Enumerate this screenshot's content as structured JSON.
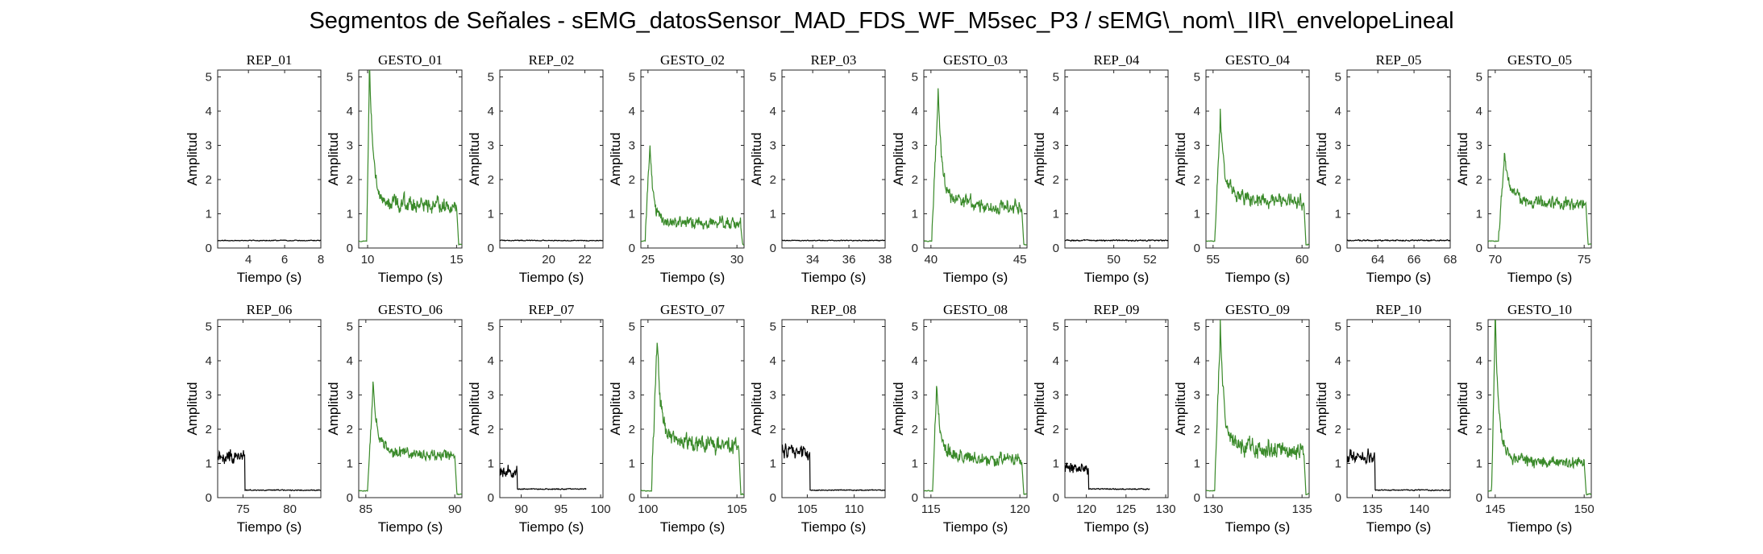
{
  "figure": {
    "title": "Segmentos de Señales - sEMG_datosSensor_MAD_FDS_WF_M5sec_P3 / sEMG\\_nom\\_IIR\\_envelopeLineal"
  },
  "colors": {
    "rep": "#000000",
    "gesto": "#3a8a2a",
    "axis": "#262626"
  },
  "chart_data": [
    {
      "type": "line",
      "title": "REP_01",
      "xlabel": "Tiempo (s)",
      "ylabel": "Amplitud",
      "xlim": [
        2.3,
        8
      ],
      "ylim": [
        0,
        5.2
      ],
      "xticks": [
        4,
        6,
        8
      ],
      "yticks": [
        0,
        1,
        2,
        3,
        4,
        5
      ],
      "series": [
        {
          "color": "rep",
          "kind": "rest",
          "start": 2.3,
          "end": 8,
          "base": 0.22,
          "noise": 0.02
        }
      ]
    },
    {
      "type": "line",
      "title": "GESTO_01",
      "xlabel": "Tiempo (s)",
      "ylabel": "Amplitud",
      "xlim": [
        9.5,
        15.3
      ],
      "ylim": [
        0,
        5.2
      ],
      "xticks": [
        10,
        15
      ],
      "yticks": [
        0,
        1,
        2,
        3,
        4,
        5
      ],
      "series": [
        {
          "color": "gesto",
          "kind": "gesture",
          "start": 9.5,
          "end": 15.3,
          "onset": 9.95,
          "peakT": 10.1,
          "peak": 5.1,
          "level": 1.2,
          "offset": 15.0,
          "noise": 0.22
        }
      ]
    },
    {
      "type": "line",
      "title": "REP_02",
      "xlabel": "Tiempo (s)",
      "ylabel": "Amplitud",
      "xlim": [
        17.3,
        23
      ],
      "ylim": [
        0,
        5.2
      ],
      "xticks": [
        20,
        22
      ],
      "yticks": [
        0,
        1,
        2,
        3,
        4,
        5
      ],
      "series": [
        {
          "color": "rep",
          "kind": "rest",
          "start": 17.3,
          "end": 23,
          "base": 0.22,
          "noise": 0.02
        }
      ]
    },
    {
      "type": "line",
      "title": "GESTO_02",
      "xlabel": "Tiempo (s)",
      "ylabel": "Amplitud",
      "xlim": [
        24.6,
        30.4
      ],
      "ylim": [
        0,
        5.2
      ],
      "xticks": [
        25,
        30
      ],
      "yticks": [
        0,
        1,
        2,
        3,
        4,
        5
      ],
      "series": [
        {
          "color": "gesto",
          "kind": "gesture",
          "start": 24.6,
          "end": 30.4,
          "onset": 24.85,
          "peakT": 25.1,
          "peak": 2.8,
          "level": 0.7,
          "offset": 30.2,
          "noise": 0.18
        }
      ]
    },
    {
      "type": "line",
      "title": "REP_03",
      "xlabel": "Tiempo (s)",
      "ylabel": "Amplitud",
      "xlim": [
        32.3,
        38
      ],
      "ylim": [
        0,
        5.2
      ],
      "xticks": [
        34,
        36,
        38
      ],
      "yticks": [
        0,
        1,
        2,
        3,
        4,
        5
      ],
      "series": [
        {
          "color": "rep",
          "kind": "rest",
          "start": 32.3,
          "end": 38,
          "base": 0.22,
          "noise": 0.02
        }
      ]
    },
    {
      "type": "line",
      "title": "GESTO_03",
      "xlabel": "Tiempo (s)",
      "ylabel": "Amplitud",
      "xlim": [
        39.6,
        45.4
      ],
      "ylim": [
        0,
        5.2
      ],
      "xticks": [
        40,
        45
      ],
      "yticks": [
        0,
        1,
        2,
        3,
        4,
        5
      ],
      "series": [
        {
          "color": "gesto",
          "kind": "gesture",
          "start": 39.6,
          "end": 45.4,
          "onset": 40.05,
          "peakT": 40.4,
          "peak": 4.4,
          "level": 1.2,
          "offset": 45.1,
          "noise": 0.22
        }
      ]
    },
    {
      "type": "line",
      "title": "REP_04",
      "xlabel": "Tiempo (s)",
      "ylabel": "Amplitud",
      "xlim": [
        47.3,
        53
      ],
      "ylim": [
        0,
        5.2
      ],
      "xticks": [
        50,
        52
      ],
      "yticks": [
        0,
        1,
        2,
        3,
        4,
        5
      ],
      "series": [
        {
          "color": "rep",
          "kind": "rest",
          "start": 47.3,
          "end": 53,
          "base": 0.22,
          "noise": 0.03
        }
      ]
    },
    {
      "type": "line",
      "title": "GESTO_04",
      "xlabel": "Tiempo (s)",
      "ylabel": "Amplitud",
      "xlim": [
        54.6,
        60.4
      ],
      "ylim": [
        0,
        5.2
      ],
      "xticks": [
        55,
        60
      ],
      "yticks": [
        0,
        1,
        2,
        3,
        4,
        5
      ],
      "series": [
        {
          "color": "gesto",
          "kind": "gesture",
          "start": 54.6,
          "end": 60.4,
          "onset": 55.1,
          "peakT": 55.4,
          "peak": 3.7,
          "level": 1.35,
          "offset": 60.1,
          "noise": 0.2
        }
      ]
    },
    {
      "type": "line",
      "title": "REP_05",
      "xlabel": "Tiempo (s)",
      "ylabel": "Amplitud",
      "xlim": [
        62.3,
        68
      ],
      "ylim": [
        0,
        5.2
      ],
      "xticks": [
        64,
        66,
        68
      ],
      "yticks": [
        0,
        1,
        2,
        3,
        4,
        5
      ],
      "series": [
        {
          "color": "rep",
          "kind": "rest",
          "start": 62.3,
          "end": 68,
          "base": 0.22,
          "noise": 0.03
        }
      ]
    },
    {
      "type": "line",
      "title": "GESTO_05",
      "xlabel": "Tiempo (s)",
      "ylabel": "Amplitud",
      "xlim": [
        69.6,
        75.4
      ],
      "ylim": [
        0,
        5.2
      ],
      "xticks": [
        70,
        75
      ],
      "yticks": [
        0,
        1,
        2,
        3,
        4,
        5
      ],
      "series": [
        {
          "color": "gesto",
          "kind": "gesture",
          "start": 69.6,
          "end": 75.4,
          "onset": 70.2,
          "peakT": 70.5,
          "peak": 2.55,
          "level": 1.25,
          "offset": 75.1,
          "noise": 0.18
        }
      ]
    },
    {
      "type": "line",
      "title": "REP_06",
      "xlabel": "Tiempo (s)",
      "ylabel": "Amplitud",
      "xlim": [
        72.3,
        83.3
      ],
      "ylim": [
        0,
        5.2
      ],
      "xticks": [
        75,
        80
      ],
      "yticks": [
        0,
        1,
        2,
        3,
        4,
        5
      ],
      "series": [
        {
          "color": "rep",
          "kind": "rest_active",
          "start": 72.3,
          "end": 83.3,
          "activeEnd": 75.2,
          "activeLevel": 1.2,
          "base": 0.22,
          "noise": 0.18
        }
      ]
    },
    {
      "type": "line",
      "title": "GESTO_06",
      "xlabel": "Tiempo (s)",
      "ylabel": "Amplitud",
      "xlim": [
        84.6,
        90.4
      ],
      "ylim": [
        0,
        5.2
      ],
      "xticks": [
        85,
        90
      ],
      "yticks": [
        0,
        1,
        2,
        3,
        4,
        5
      ],
      "series": [
        {
          "color": "gesto",
          "kind": "gesture",
          "start": 84.6,
          "end": 90.4,
          "onset": 85.1,
          "peakT": 85.4,
          "peak": 3.1,
          "level": 1.2,
          "offset": 90.0,
          "noise": 0.18
        }
      ]
    },
    {
      "type": "line",
      "title": "REP_07",
      "xlabel": "Tiempo (s)",
      "ylabel": "Amplitud",
      "xlim": [
        87.3,
        100.3
      ],
      "ylim": [
        0,
        5.2
      ],
      "xticks": [
        90,
        95,
        100
      ],
      "yticks": [
        0,
        1,
        2,
        3,
        4,
        5
      ],
      "series": [
        {
          "color": "rep",
          "kind": "rest_active",
          "start": 87.3,
          "end": 98.2,
          "activeEnd": 89.5,
          "activeLevel": 0.75,
          "base": 0.25,
          "noise": 0.14
        }
      ]
    },
    {
      "type": "line",
      "title": "GESTO_07",
      "xlabel": "Tiempo (s)",
      "ylabel": "Amplitud",
      "xlim": [
        99.6,
        105.4
      ],
      "ylim": [
        0,
        5.2
      ],
      "xticks": [
        100,
        105
      ],
      "yticks": [
        0,
        1,
        2,
        3,
        4,
        5
      ],
      "series": [
        {
          "color": "gesto",
          "kind": "gesture",
          "start": 99.6,
          "end": 105.4,
          "onset": 100.2,
          "peakT": 100.5,
          "peak": 4.5,
          "level": 1.5,
          "offset": 105.1,
          "noise": 0.25
        }
      ]
    },
    {
      "type": "line",
      "title": "REP_08",
      "xlabel": "Tiempo (s)",
      "ylabel": "Amplitud",
      "xlim": [
        102.3,
        113.3
      ],
      "ylim": [
        0,
        5.2
      ],
      "xticks": [
        105,
        110
      ],
      "yticks": [
        0,
        1,
        2,
        3,
        4,
        5
      ],
      "series": [
        {
          "color": "rep",
          "kind": "rest_active",
          "start": 102.3,
          "end": 113.3,
          "activeEnd": 105.3,
          "activeLevel": 1.35,
          "base": 0.22,
          "noise": 0.2
        }
      ]
    },
    {
      "type": "line",
      "title": "GESTO_08",
      "xlabel": "Tiempo (s)",
      "ylabel": "Amplitud",
      "xlim": [
        114.6,
        120.4
      ],
      "ylim": [
        0,
        5.2
      ],
      "xticks": [
        115,
        120
      ],
      "yticks": [
        0,
        1,
        2,
        3,
        4,
        5
      ],
      "series": [
        {
          "color": "gesto",
          "kind": "gesture",
          "start": 114.6,
          "end": 120.4,
          "onset": 115.1,
          "peakT": 115.3,
          "peak": 3.0,
          "level": 1.1,
          "offset": 120.1,
          "noise": 0.2
        }
      ]
    },
    {
      "type": "line",
      "title": "REP_09",
      "xlabel": "Tiempo (s)",
      "ylabel": "Amplitud",
      "xlim": [
        117.3,
        130.3
      ],
      "ylim": [
        0,
        5.2
      ],
      "xticks": [
        120,
        125,
        130
      ],
      "yticks": [
        0,
        1,
        2,
        3,
        4,
        5
      ],
      "series": [
        {
          "color": "rep",
          "kind": "rest_active",
          "start": 117.3,
          "end": 128.0,
          "activeEnd": 120.3,
          "activeLevel": 0.85,
          "base": 0.25,
          "noise": 0.14
        }
      ]
    },
    {
      "type": "line",
      "title": "GESTO_09",
      "xlabel": "Tiempo (s)",
      "ylabel": "Amplitud",
      "xlim": [
        129.6,
        135.4
      ],
      "ylim": [
        0,
        5.2
      ],
      "xticks": [
        130,
        135
      ],
      "yticks": [
        0,
        1,
        2,
        3,
        4,
        5
      ],
      "series": [
        {
          "color": "gesto",
          "kind": "gesture",
          "start": 129.6,
          "end": 135.4,
          "onset": 130.1,
          "peakT": 130.4,
          "peak": 4.85,
          "level": 1.35,
          "offset": 135.1,
          "noise": 0.25
        }
      ]
    },
    {
      "type": "line",
      "title": "REP_10",
      "xlabel": "Tiempo (s)",
      "ylabel": "Amplitud",
      "xlim": [
        132.3,
        143.3
      ],
      "ylim": [
        0,
        5.2
      ],
      "xticks": [
        135,
        140
      ],
      "yticks": [
        0,
        1,
        2,
        3,
        4,
        5
      ],
      "series": [
        {
          "color": "rep",
          "kind": "rest_active",
          "start": 132.3,
          "end": 143.3,
          "activeEnd": 135.3,
          "activeLevel": 1.2,
          "base": 0.22,
          "noise": 0.18
        }
      ]
    },
    {
      "type": "line",
      "title": "GESTO_10",
      "xlabel": "Tiempo (s)",
      "ylabel": "Amplitud",
      "xlim": [
        144.6,
        150.4
      ],
      "ylim": [
        0,
        5.2
      ],
      "xticks": [
        145,
        150
      ],
      "yticks": [
        0,
        1,
        2,
        3,
        4,
        5
      ],
      "series": [
        {
          "color": "gesto",
          "kind": "gesture",
          "start": 144.6,
          "end": 150.4,
          "onset": 144.8,
          "peakT": 145.0,
          "peak": 5.15,
          "level": 1.0,
          "offset": 150.0,
          "noise": 0.18
        }
      ]
    }
  ]
}
